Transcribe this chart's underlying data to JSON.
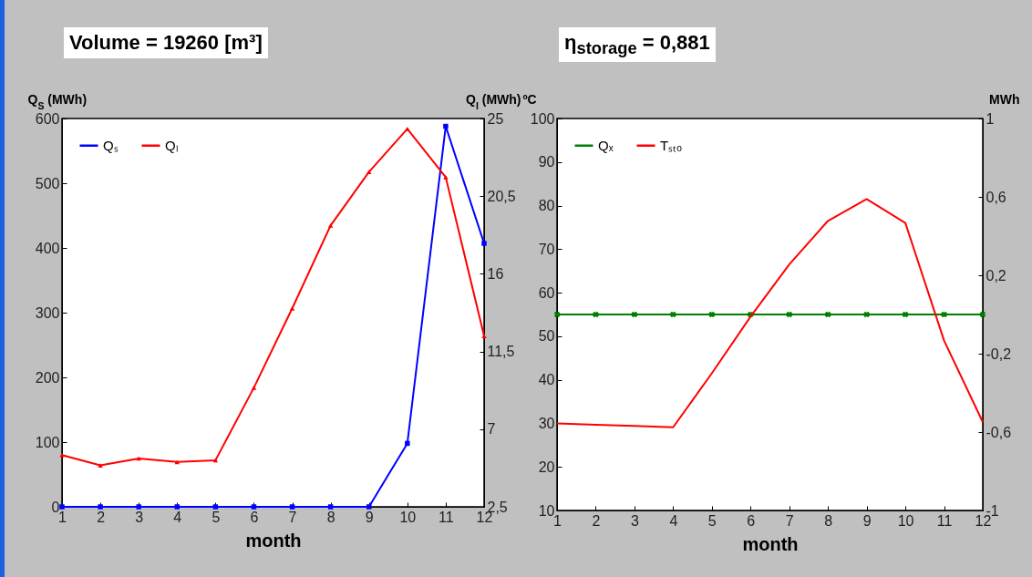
{
  "chart_data": [
    {
      "type": "line",
      "annotations": [
        "Volume = 19260 [m³]"
      ],
      "xlabel": "month",
      "ylabel": "Q$_{S}$ (MWh)",
      "y2label": "Q$_{l}$ (MWh)",
      "x": [
        1,
        2,
        3,
        4,
        5,
        6,
        7,
        8,
        9,
        10,
        11,
        12
      ],
      "xlim": [
        1,
        12
      ],
      "xticks": [
        1,
        2,
        3,
        4,
        5,
        6,
        7,
        8,
        9,
        10,
        11,
        12
      ],
      "ylim": [
        0,
        600
      ],
      "yticks": [
        0,
        100,
        200,
        300,
        400,
        500,
        600
      ],
      "y2lim": [
        2.5,
        25
      ],
      "y2ticks": [
        {
          "value": 2.5,
          "label": "2,5"
        },
        7,
        {
          "value": 11.5,
          "label": "11,5"
        },
        16,
        {
          "value": 20.5,
          "label": "20,5"
        },
        25
      ],
      "legend": "top left",
      "grid": false,
      "series": [
        {
          "name": "Qₛ",
          "color": "#0000ff",
          "marker": "square",
          "values": [
            0,
            0,
            0,
            0,
            0,
            0,
            0,
            0,
            0,
            98,
            588,
            407
          ]
        },
        {
          "name": "Qₗ",
          "color": "#ff0000",
          "marker": "triangle",
          "axis": "y2",
          "values": [
            5.5,
            4.9,
            5.3,
            5.1,
            5.2,
            9.4,
            14.0,
            18.8,
            21.9,
            24.4,
            21.6,
            12.4
          ]
        }
      ]
    },
    {
      "type": "line",
      "annotations": [
        "η$_{storage}$ = 0,881"
      ],
      "xlabel": "month",
      "ylabel": "ºC",
      "y2label": "MWh",
      "x": [
        1,
        2,
        3,
        4,
        5,
        6,
        7,
        8,
        9,
        10,
        11,
        12
      ],
      "xlim": [
        1,
        12
      ],
      "xticks": [
        1,
        2,
        3,
        4,
        5,
        6,
        7,
        8,
        9,
        10,
        11,
        12
      ],
      "ylim": [
        10,
        100
      ],
      "yticks": [
        10,
        20,
        30,
        40,
        50,
        60,
        70,
        80,
        90,
        100
      ],
      "y2lim": [
        -1,
        1
      ],
      "y2ticks": [
        {
          "value": -1,
          "label": "-1"
        },
        {
          "value": -0.6,
          "label": "-0,6"
        },
        {
          "value": -0.2,
          "label": "-0,2"
        },
        {
          "value": 0.2,
          "label": "0,2"
        },
        {
          "value": 0.6,
          "label": "0,6"
        },
        1
      ],
      "legend": "top left",
      "grid": false,
      "series": [
        {
          "name": "Qₓ",
          "color": "#008000",
          "marker": "cross",
          "axis": "y2",
          "values": [
            0,
            0,
            0,
            0,
            0,
            0,
            0,
            0,
            0,
            0,
            0,
            0
          ]
        },
        {
          "name": "Tₛₜₒ",
          "color": "#ff0000",
          "marker": "none",
          "values": [
            30,
            29.7,
            29.4,
            29.1,
            41.5,
            54.5,
            66.5,
            76.5,
            81.5,
            76,
            49,
            30.3
          ]
        }
      ]
    }
  ]
}
